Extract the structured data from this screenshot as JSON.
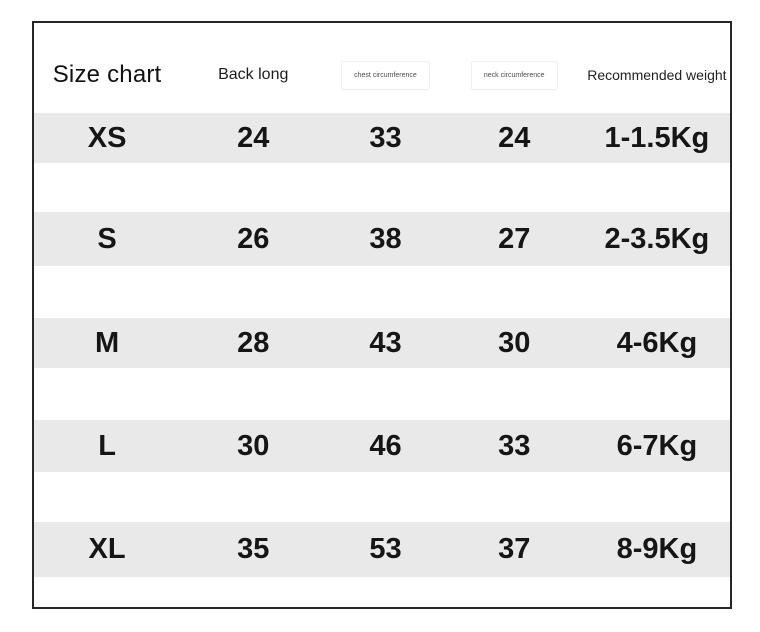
{
  "chart_data": {
    "type": "table",
    "title": "Size chart",
    "columns": [
      "Size chart",
      "Back long",
      "chest circumference",
      "neck circumference",
      "Recommended weight"
    ],
    "rows": [
      [
        "XS",
        "24",
        "33",
        "24",
        "1-1.5Kg"
      ],
      [
        "S",
        "26",
        "38",
        "27",
        "2-3.5Kg"
      ],
      [
        "M",
        "28",
        "43",
        "30",
        "4-6Kg"
      ],
      [
        "L",
        "30",
        "46",
        "33",
        "6-7Kg"
      ],
      [
        "XL",
        "35",
        "53",
        "37",
        "8-9Kg"
      ]
    ],
    "units": "Kg"
  },
  "colors": {
    "row_stripe": "#e9e9e9",
    "table_border": "#262626",
    "data_text": "#161616",
    "muted_header_text": "#4d4d4d",
    "background": "#ffffff"
  }
}
